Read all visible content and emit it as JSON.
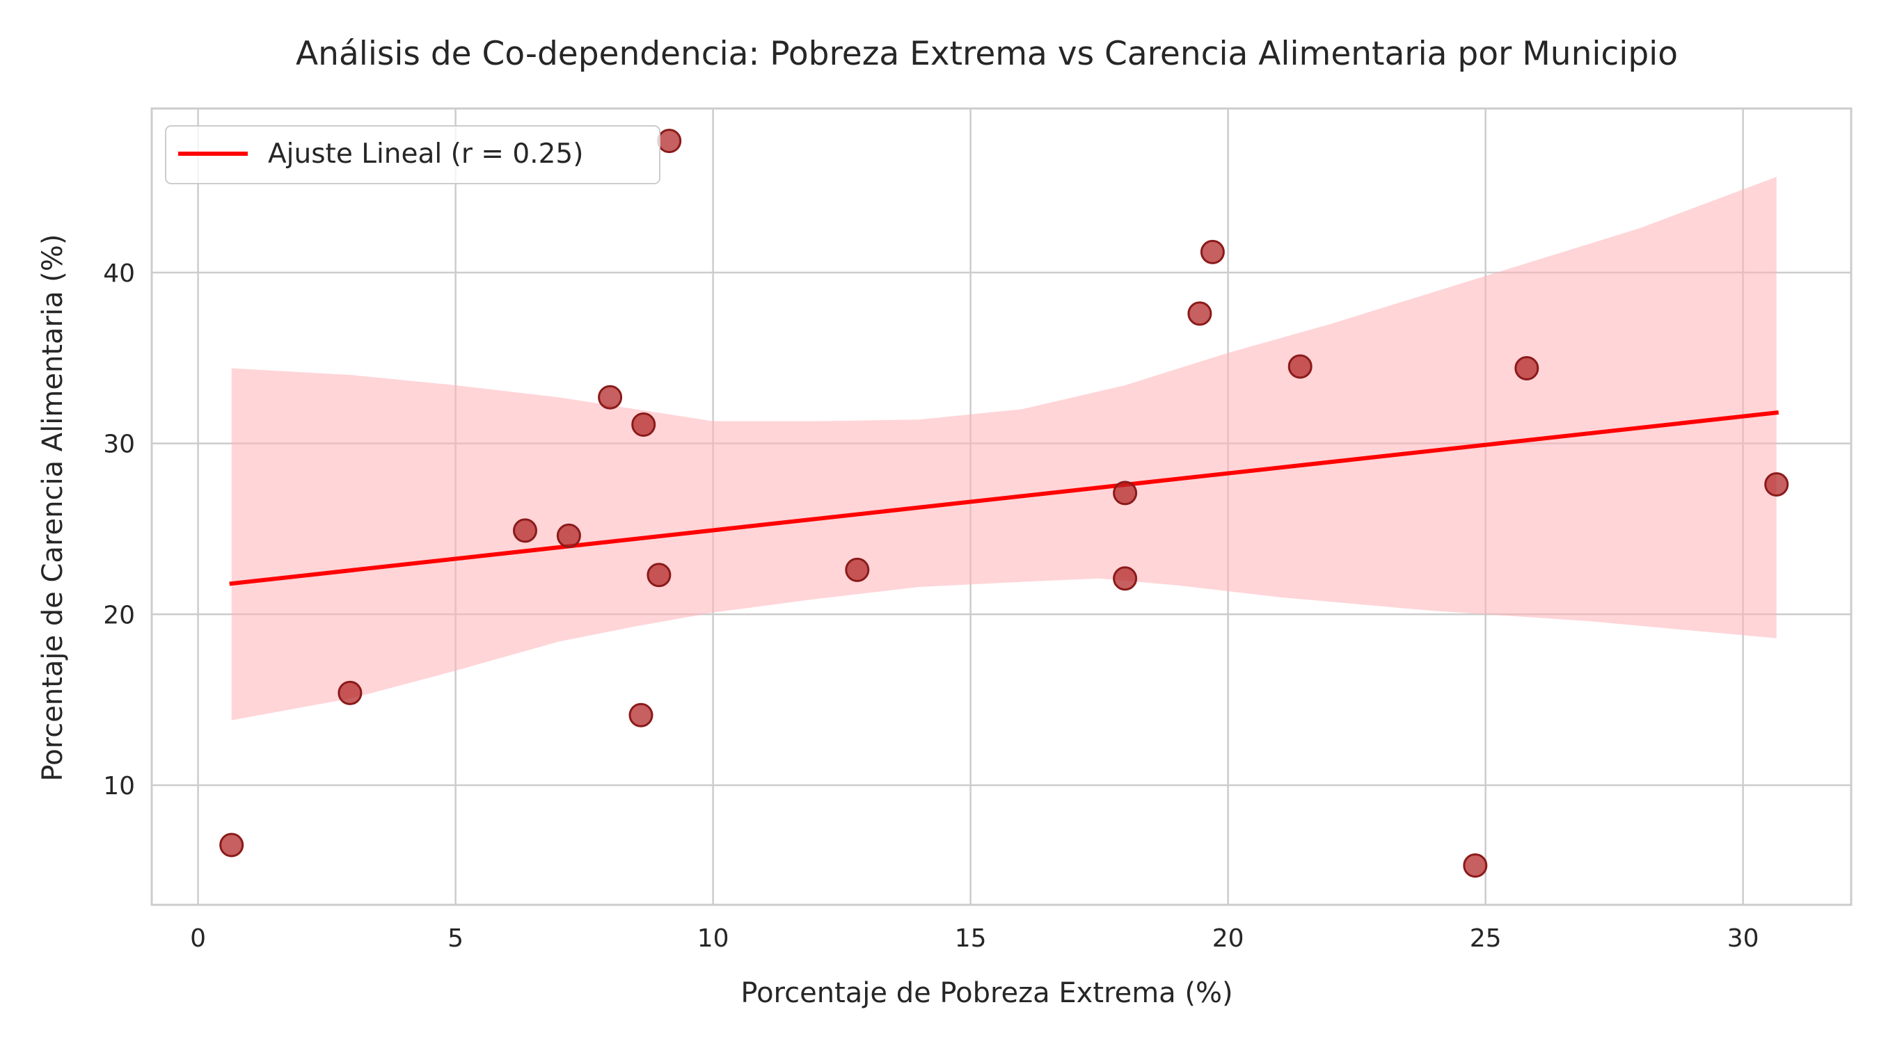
{
  "chart_data": {
    "type": "scatter",
    "title": "Análisis de Co-dependencia: Pobreza Extrema vs Carencia Alimentaria por Municipio",
    "xlabel": "Porcentaje de Pobreza Extrema (%)",
    "ylabel": "Porcentaje de Carencia Alimentaria (%)",
    "xlim": [
      -0.9,
      32.1
    ],
    "ylim": [
      3.0,
      49.6
    ],
    "x_ticks": [
      0,
      5,
      10,
      15,
      20,
      25,
      30
    ],
    "y_ticks": [
      10,
      20,
      30,
      40
    ],
    "grid": true,
    "legend_position": "top-left",
    "points": [
      {
        "x": 0.65,
        "y": 6.5
      },
      {
        "x": 2.95,
        "y": 15.4
      },
      {
        "x": 6.35,
        "y": 24.9
      },
      {
        "x": 7.2,
        "y": 24.6
      },
      {
        "x": 8.0,
        "y": 32.7
      },
      {
        "x": 8.6,
        "y": 14.1
      },
      {
        "x": 8.65,
        "y": 31.1
      },
      {
        "x": 8.95,
        "y": 22.3
      },
      {
        "x": 9.15,
        "y": 47.7
      },
      {
        "x": 12.8,
        "y": 22.6
      },
      {
        "x": 18.0,
        "y": 27.1
      },
      {
        "x": 18.0,
        "y": 22.1
      },
      {
        "x": 19.45,
        "y": 37.6
      },
      {
        "x": 19.7,
        "y": 41.2
      },
      {
        "x": 21.4,
        "y": 34.5
      },
      {
        "x": 24.8,
        "y": 5.3
      },
      {
        "x": 25.8,
        "y": 34.4
      },
      {
        "x": 30.65,
        "y": 27.6
      }
    ],
    "regression": {
      "name": "Ajuste Lineal (r = 0.25)",
      "x_start": 0.65,
      "x_end": 30.65,
      "y_start": 21.8,
      "y_end": 31.8
    },
    "confidence_band": {
      "upper": [
        {
          "x": 0.65,
          "y": 34.4
        },
        {
          "x": 3.0,
          "y": 34.0
        },
        {
          "x": 5.0,
          "y": 33.4
        },
        {
          "x": 7.0,
          "y": 32.7
        },
        {
          "x": 8.5,
          "y": 32.0
        },
        {
          "x": 10.0,
          "y": 31.3
        },
        {
          "x": 12.0,
          "y": 31.3
        },
        {
          "x": 14.0,
          "y": 31.4
        },
        {
          "x": 16.0,
          "y": 32.0
        },
        {
          "x": 18.0,
          "y": 33.4
        },
        {
          "x": 20.0,
          "y": 35.3
        },
        {
          "x": 22.0,
          "y": 37.0
        },
        {
          "x": 25.0,
          "y": 39.8
        },
        {
          "x": 28.0,
          "y": 42.6
        },
        {
          "x": 30.65,
          "y": 45.6
        }
      ],
      "lower": [
        {
          "x": 0.65,
          "y": 13.8
        },
        {
          "x": 3.0,
          "y": 15.1
        },
        {
          "x": 5.0,
          "y": 16.7
        },
        {
          "x": 7.0,
          "y": 18.4
        },
        {
          "x": 8.5,
          "y": 19.3
        },
        {
          "x": 10.0,
          "y": 20.1
        },
        {
          "x": 12.0,
          "y": 20.9
        },
        {
          "x": 14.0,
          "y": 21.6
        },
        {
          "x": 16.0,
          "y": 21.9
        },
        {
          "x": 17.5,
          "y": 22.1
        },
        {
          "x": 19.0,
          "y": 21.7
        },
        {
          "x": 21.0,
          "y": 21.0
        },
        {
          "x": 24.0,
          "y": 20.2
        },
        {
          "x": 27.0,
          "y": 19.6
        },
        {
          "x": 30.65,
          "y": 18.6
        }
      ]
    },
    "colors": {
      "points": "#b22222",
      "points_edge": "#8b1a1a",
      "regression_line": "#ff0000",
      "band": "#ffb3b8",
      "grid": "#cccccc",
      "spine": "#cccccc",
      "text": "#262626"
    }
  }
}
